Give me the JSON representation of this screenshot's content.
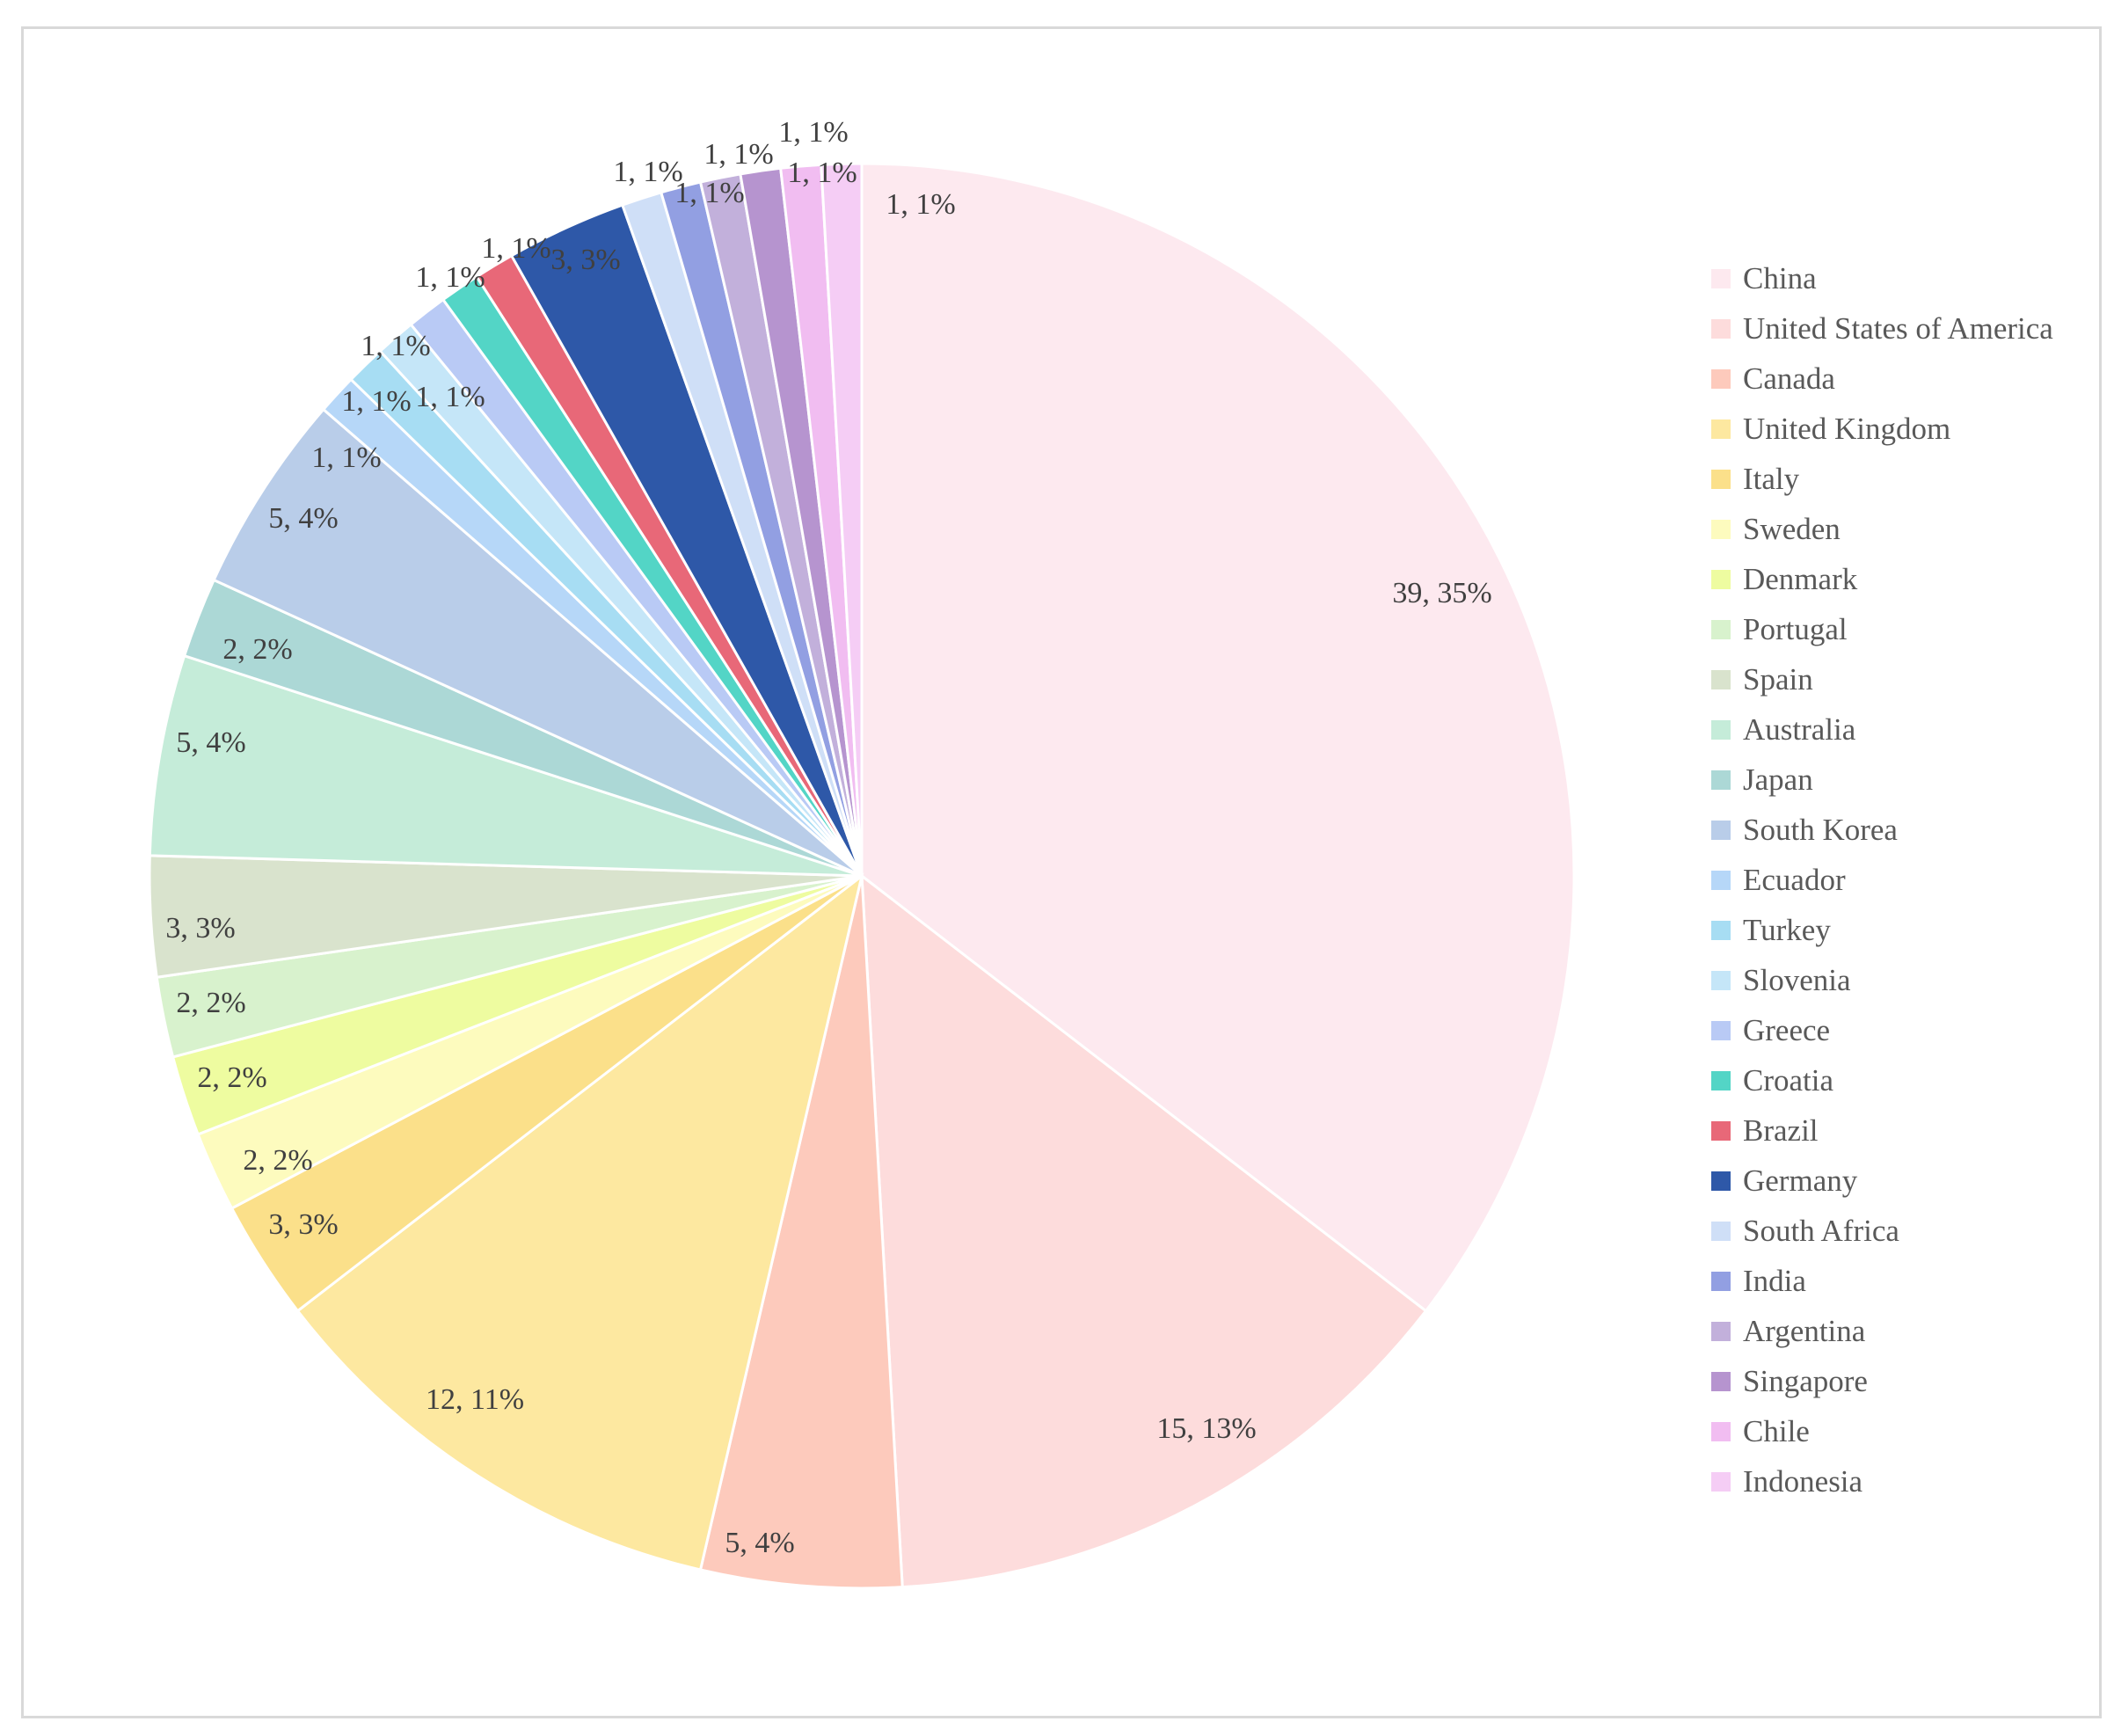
{
  "chart_data": {
    "type": "pie",
    "title": "",
    "label_format": "value, percent",
    "legend_position": "right",
    "slices": [
      {
        "name": "China",
        "value": 39,
        "percent": "35%",
        "color": "#fde9ef"
      },
      {
        "name": "United States of America",
        "value": 15,
        "percent": "13%",
        "color": "#fddcdc"
      },
      {
        "name": "Canada",
        "value": 5,
        "percent": "4%",
        "color": "#fdcabc"
      },
      {
        "name": "United Kingdom",
        "value": 12,
        "percent": "11%",
        "color": "#fde8a0"
      },
      {
        "name": "Italy",
        "value": 3,
        "percent": "3%",
        "color": "#fbe08a"
      },
      {
        "name": "Sweden",
        "value": 2,
        "percent": "2%",
        "color": "#fdfbbe"
      },
      {
        "name": "Denmark",
        "value": 2,
        "percent": "2%",
        "color": "#eefca0"
      },
      {
        "name": "Portugal",
        "value": 2,
        "percent": "2%",
        "color": "#d8f2cd"
      },
      {
        "name": "Spain",
        "value": 3,
        "percent": "3%",
        "color": "#d9e3cd"
      },
      {
        "name": "Australia",
        "value": 5,
        "percent": "4%",
        "color": "#c5ecd9"
      },
      {
        "name": "Japan",
        "value": 2,
        "percent": "2%",
        "color": "#acd8d6"
      },
      {
        "name": "South Korea",
        "value": 5,
        "percent": "4%",
        "color": "#b9cde9"
      },
      {
        "name": "Ecuador",
        "value": 1,
        "percent": "1%",
        "color": "#b6d7f8"
      },
      {
        "name": "Turkey",
        "value": 1,
        "percent": "1%",
        "color": "#a7ddf3"
      },
      {
        "name": "Slovenia",
        "value": 1,
        "percent": "1%",
        "color": "#c5e6f8"
      },
      {
        "name": "Greece",
        "value": 1,
        "percent": "1%",
        "color": "#b9caf5"
      },
      {
        "name": "Croatia",
        "value": 1,
        "percent": "1%",
        "color": "#53d5c6"
      },
      {
        "name": "Brazil",
        "value": 1,
        "percent": "1%",
        "color": "#e86878"
      },
      {
        "name": "Germany",
        "value": 3,
        "percent": "3%",
        "color": "#2e58a8"
      },
      {
        "name": "South Africa",
        "value": 1,
        "percent": "1%",
        "color": "#cfdff7"
      },
      {
        "name": "India",
        "value": 1,
        "percent": "1%",
        "color": "#929fe2"
      },
      {
        "name": "Argentina",
        "value": 1,
        "percent": "1%",
        "color": "#c2b0db"
      },
      {
        "name": "Singapore",
        "value": 1,
        "percent": "1%",
        "color": "#b694cf"
      },
      {
        "name": "Chile",
        "value": 1,
        "percent": "1%",
        "color": "#f1bdf1"
      },
      {
        "name": "Indonesia",
        "value": 1,
        "percent": "1%",
        "color": "#f5cdf5"
      }
    ]
  }
}
